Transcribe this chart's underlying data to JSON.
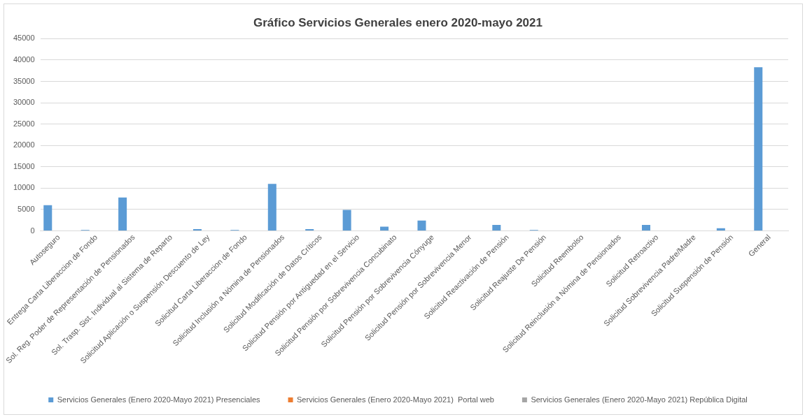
{
  "chart_data": {
    "type": "bar",
    "title": "Gráfico Servicios Generales enero 2020-mayo 2021",
    "categories": [
      "Autoseguro",
      "Entrega Carta Liberaccion de Fondo",
      "Sol. Reg. Poder de Representación de Pensionados",
      "Sol. Trasp. Sist. Individual al Sistema de Reparto",
      "Solicitud Aplicación o Suspensión Descuento de Ley",
      "Solicitud Carta Liberaccion de Fondo",
      "Solicitud Inclusión a Nómina de Pensionados",
      "Solicitud Modificación de Datos Críticos",
      "Solicitud Pensión por Antiguedad en el Servicio",
      "Solicitud Pensión por Sobrevivencia Concubinato",
      "Solicitud Pensión por Sobrevivencia Cónyuge",
      "Solicitud Pensión por Sobrevivencia Menor",
      "Solicitud Reactivación de Pensión",
      "Solicitud Reajuste De Pensión",
      "Solicitud Reembolso",
      "Solicitud Reinclusión a Nómina de Pensionados",
      "Solicitud Retroactivo",
      "Solicitud Sobrevivencia Padre/Madre",
      "Solicitud Suspensión de Pensión",
      "General"
    ],
    "series": [
      {
        "name": "Servicios Generales (Enero 2020-Mayo 2021) Presenciales",
        "color": "#5b9bd5",
        "values": [
          6000,
          200,
          7800,
          0,
          400,
          200,
          11000,
          400,
          4900,
          1000,
          2400,
          0,
          1400,
          200,
          0,
          0,
          1400,
          0,
          600,
          38300
        ]
      },
      {
        "name": "Servicios Generales (Enero 2020-Mayo 2021)  Portal web",
        "color": "#ed7d31",
        "values": [
          0,
          0,
          0,
          0,
          0,
          0,
          0,
          0,
          0,
          0,
          0,
          0,
          0,
          0,
          0,
          0,
          0,
          0,
          0,
          0
        ]
      },
      {
        "name": "Servicios Generales (Enero 2020-Mayo 2021) República Digital",
        "color": "#a5a5a5",
        "values": [
          0,
          0,
          0,
          0,
          0,
          0,
          0,
          0,
          0,
          0,
          0,
          0,
          0,
          0,
          0,
          0,
          0,
          0,
          0,
          0
        ]
      }
    ],
    "ylim": [
      0,
      45000
    ],
    "yticks": [
      0,
      5000,
      10000,
      15000,
      20000,
      25000,
      30000,
      35000,
      40000,
      45000
    ],
    "grid": "y",
    "legend": "bottom"
  }
}
